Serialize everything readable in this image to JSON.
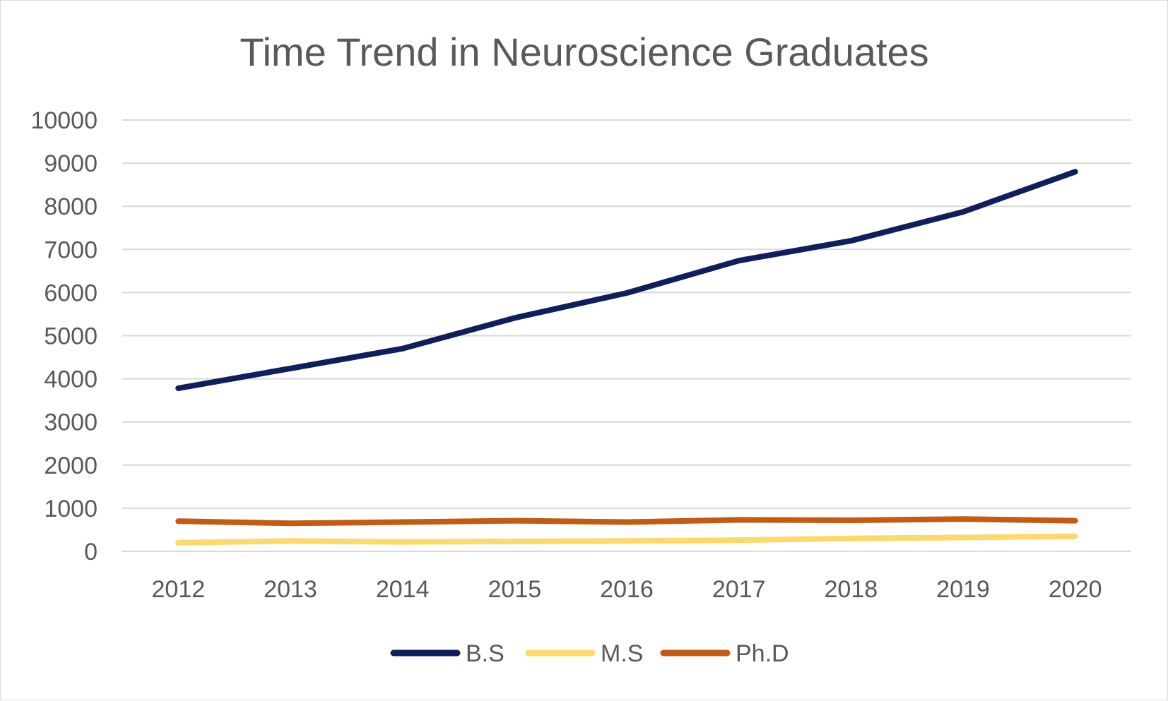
{
  "chart_data": {
    "type": "line",
    "title": "Time Trend in Neuroscience Graduates",
    "xlabel": "",
    "ylabel": "",
    "categories": [
      "2012",
      "2013",
      "2014",
      "2015",
      "2016",
      "2017",
      "2018",
      "2019",
      "2020"
    ],
    "ylim": [
      0,
      10000
    ],
    "yticks": [
      "0",
      "1000",
      "2000",
      "3000",
      "4000",
      "5000",
      "6000",
      "7000",
      "8000",
      "9000",
      "10000"
    ],
    "grid": true,
    "legend_position": "bottom",
    "series": [
      {
        "name": "B.S",
        "color": "#0e1f5b",
        "values": [
          3780,
          4240,
          4700,
          5410,
          5990,
          6740,
          7200,
          7870,
          8800
        ]
      },
      {
        "name": "M.S",
        "color": "#fcd96a",
        "values": [
          200,
          240,
          220,
          230,
          240,
          260,
          300,
          320,
          350
        ]
      },
      {
        "name": "Ph.D",
        "color": "#c55a11",
        "values": [
          700,
          650,
          680,
          710,
          680,
          730,
          720,
          750,
          710
        ]
      }
    ]
  }
}
